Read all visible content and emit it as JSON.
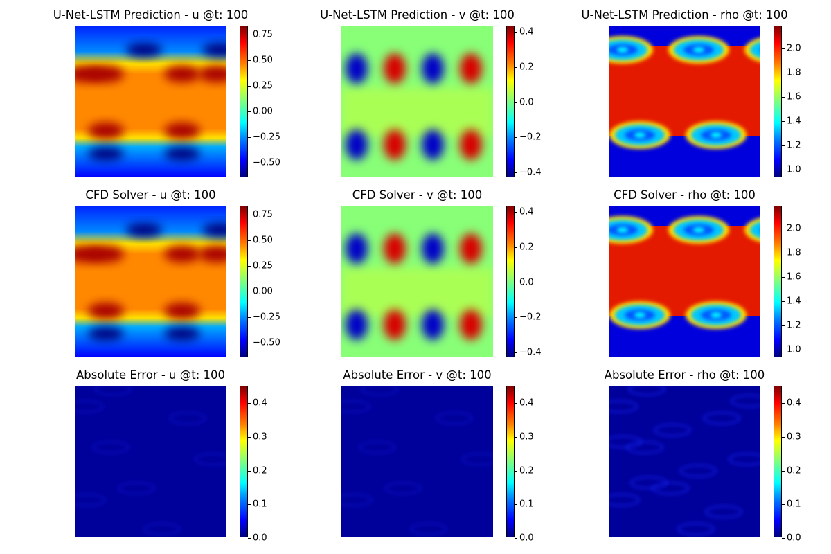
{
  "colormap": {
    "name": "jet",
    "stops": [
      "#00007f",
      "#0000ff",
      "#007fff",
      "#00ffff",
      "#7fff7f",
      "#ffff00",
      "#ff7f00",
      "#ff0000",
      "#7f0000"
    ]
  },
  "panels": [
    {
      "title": "U-Net-LSTM Prediction - u @t: 100",
      "field": "u",
      "kind": "prediction",
      "cbar_range": [
        -0.65,
        0.83
      ],
      "ticks": [
        0.75,
        0.5,
        0.25,
        0.0,
        -0.25,
        -0.5
      ],
      "tick_labels": [
        "0.75",
        "0.50",
        "0.25",
        "0.00",
        "−0.25",
        "−0.50"
      ]
    },
    {
      "title": "U-Net-LSTM Prediction - v @t: 100",
      "field": "v",
      "kind": "prediction",
      "cbar_range": [
        -0.43,
        0.43
      ],
      "ticks": [
        0.4,
        0.2,
        0.0,
        -0.2,
        -0.4
      ],
      "tick_labels": [
        "0.4",
        "0.2",
        "0.0",
        "−0.2",
        "−0.4"
      ]
    },
    {
      "title": "U-Net-LSTM Prediction - rho @t: 100",
      "field": "rho",
      "kind": "prediction",
      "cbar_range": [
        0.93,
        2.18
      ],
      "ticks": [
        2.0,
        1.8,
        1.6,
        1.4,
        1.2,
        1.0
      ],
      "tick_labels": [
        "2.0",
        "1.8",
        "1.6",
        "1.4",
        "1.2",
        "1.0"
      ]
    },
    {
      "title": "CFD Solver - u @t: 100",
      "field": "u",
      "kind": "solver",
      "cbar_range": [
        -0.65,
        0.83
      ],
      "ticks": [
        0.75,
        0.5,
        0.25,
        0.0,
        -0.25,
        -0.5
      ],
      "tick_labels": [
        "0.75",
        "0.50",
        "0.25",
        "0.00",
        "−0.25",
        "−0.50"
      ]
    },
    {
      "title": "CFD Solver - v @t: 100",
      "field": "v",
      "kind": "solver",
      "cbar_range": [
        -0.43,
        0.43
      ],
      "ticks": [
        0.4,
        0.2,
        0.0,
        -0.2,
        -0.4
      ],
      "tick_labels": [
        "0.4",
        "0.2",
        "0.0",
        "−0.2",
        "−0.4"
      ]
    },
    {
      "title": "CFD Solver - rho @t: 100",
      "field": "rho",
      "kind": "solver",
      "cbar_range": [
        0.93,
        2.18
      ],
      "ticks": [
        2.0,
        1.8,
        1.6,
        1.4,
        1.2,
        1.0
      ],
      "tick_labels": [
        "2.0",
        "1.8",
        "1.6",
        "1.4",
        "1.2",
        "1.0"
      ]
    },
    {
      "title": "Absolute Error - u @t: 100",
      "field": "u",
      "kind": "error",
      "cbar_range": [
        0.0,
        0.45
      ],
      "ticks": [
        0.4,
        0.3,
        0.2,
        0.1,
        0.0
      ],
      "tick_labels": [
        "0.4",
        "0.3",
        "0.2",
        "0.1",
        "0.0"
      ]
    },
    {
      "title": "Absolute Error - v @t: 100",
      "field": "v",
      "kind": "error",
      "cbar_range": [
        0.0,
        0.45
      ],
      "ticks": [
        0.4,
        0.3,
        0.2,
        0.1,
        0.0
      ],
      "tick_labels": [
        "0.4",
        "0.3",
        "0.2",
        "0.1",
        "0.0"
      ]
    },
    {
      "title": "Absolute Error - rho @t: 100",
      "field": "rho",
      "kind": "error",
      "cbar_range": [
        0.0,
        0.45
      ],
      "ticks": [
        0.4,
        0.3,
        0.2,
        0.1,
        0.0
      ],
      "tick_labels": [
        "0.4",
        "0.3",
        "0.2",
        "0.1",
        "0.0"
      ]
    }
  ],
  "chart_data": [
    {
      "type": "heatmap",
      "title": "U-Net-LSTM Prediction - u @t: 100",
      "variable": "u",
      "colormap": "jet",
      "colorbar_range": [
        -0.65,
        0.83
      ],
      "colorbar_ticks": [
        -0.5,
        -0.25,
        0.0,
        0.25,
        0.5,
        0.75
      ],
      "axes": "off"
    },
    {
      "type": "heatmap",
      "title": "U-Net-LSTM Prediction - v @t: 100",
      "variable": "v",
      "colormap": "jet",
      "colorbar_range": [
        -0.43,
        0.43
      ],
      "colorbar_ticks": [
        -0.4,
        -0.2,
        0.0,
        0.2,
        0.4
      ],
      "axes": "off"
    },
    {
      "type": "heatmap",
      "title": "U-Net-LSTM Prediction - rho @t: 100",
      "variable": "rho",
      "colormap": "jet",
      "colorbar_range": [
        0.93,
        2.18
      ],
      "colorbar_ticks": [
        1.0,
        1.2,
        1.4,
        1.6,
        1.8,
        2.0
      ],
      "axes": "off"
    },
    {
      "type": "heatmap",
      "title": "CFD Solver - u @t: 100",
      "variable": "u",
      "colormap": "jet",
      "colorbar_range": [
        -0.65,
        0.83
      ],
      "colorbar_ticks": [
        -0.5,
        -0.25,
        0.0,
        0.25,
        0.5,
        0.75
      ],
      "axes": "off"
    },
    {
      "type": "heatmap",
      "title": "CFD Solver - v @t: 100",
      "variable": "v",
      "colormap": "jet",
      "colorbar_range": [
        -0.43,
        0.43
      ],
      "colorbar_ticks": [
        -0.4,
        -0.2,
        0.0,
        0.2,
        0.4
      ],
      "axes": "off"
    },
    {
      "type": "heatmap",
      "title": "CFD Solver - rho @t: 100",
      "variable": "rho",
      "colormap": "jet",
      "colorbar_range": [
        0.93,
        2.18
      ],
      "colorbar_ticks": [
        1.0,
        1.2,
        1.4,
        1.6,
        1.8,
        2.0
      ],
      "axes": "off"
    },
    {
      "type": "heatmap",
      "title": "Absolute Error - u @t: 100",
      "variable": "u",
      "colormap": "jet",
      "colorbar_range": [
        0.0,
        0.45
      ],
      "colorbar_ticks": [
        0.0,
        0.1,
        0.2,
        0.3,
        0.4
      ],
      "axes": "off"
    },
    {
      "type": "heatmap",
      "title": "Absolute Error - v @t: 100",
      "variable": "v",
      "colormap": "jet",
      "colorbar_range": [
        0.0,
        0.45
      ],
      "colorbar_ticks": [
        0.0,
        0.1,
        0.2,
        0.3,
        0.4
      ],
      "axes": "off"
    },
    {
      "type": "heatmap",
      "title": "Absolute Error - rho @t: 100",
      "variable": "rho",
      "colormap": "jet",
      "colorbar_range": [
        0.0,
        0.45
      ],
      "colorbar_ticks": [
        0.0,
        0.1,
        0.2,
        0.3,
        0.4
      ],
      "axes": "off"
    }
  ]
}
